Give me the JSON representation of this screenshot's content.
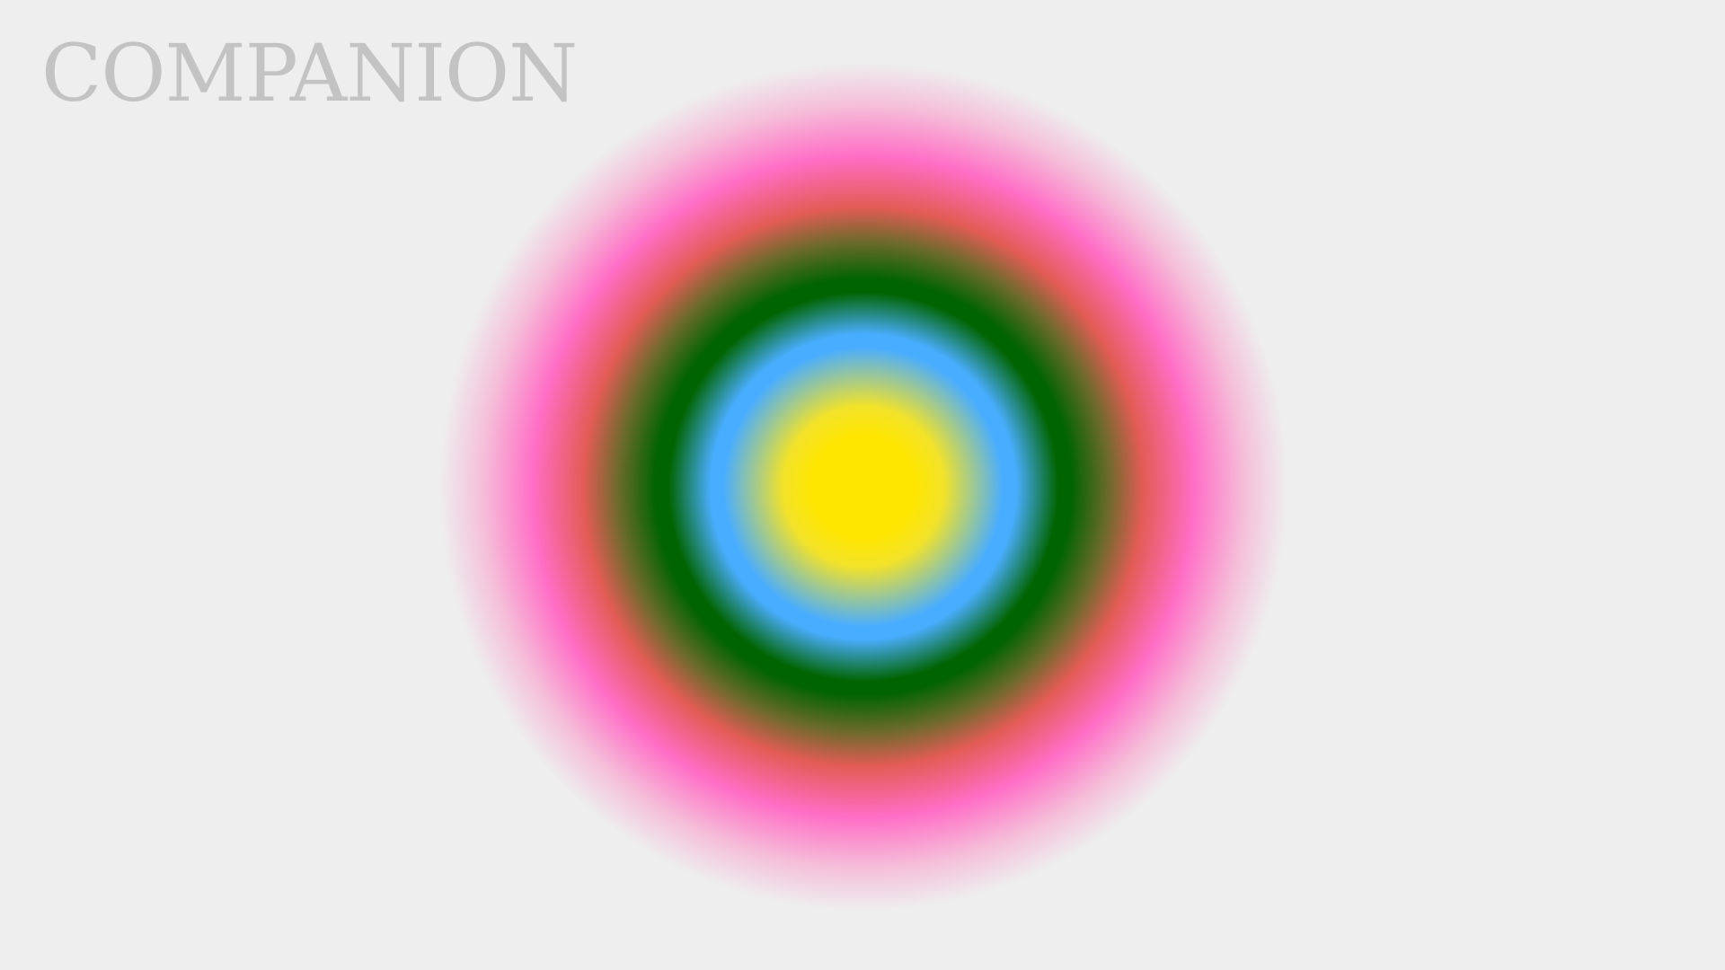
{
  "app": {
    "title": "COMPANION"
  },
  "orb": {
    "shape": "concentric radial gradient circle",
    "colors": {
      "center": "#ffe600",
      "inner": "#f2e22a",
      "blue": "#49adff",
      "green": "#006400",
      "olive": "#6f6a2c",
      "red": "#e35c55",
      "pink": "#ff6ec6",
      "light_pink": "#f5bfd9",
      "fade": "#eeeeee"
    }
  },
  "theme": {
    "background": "#eeeeee",
    "title_color": "#c3c3c3"
  }
}
